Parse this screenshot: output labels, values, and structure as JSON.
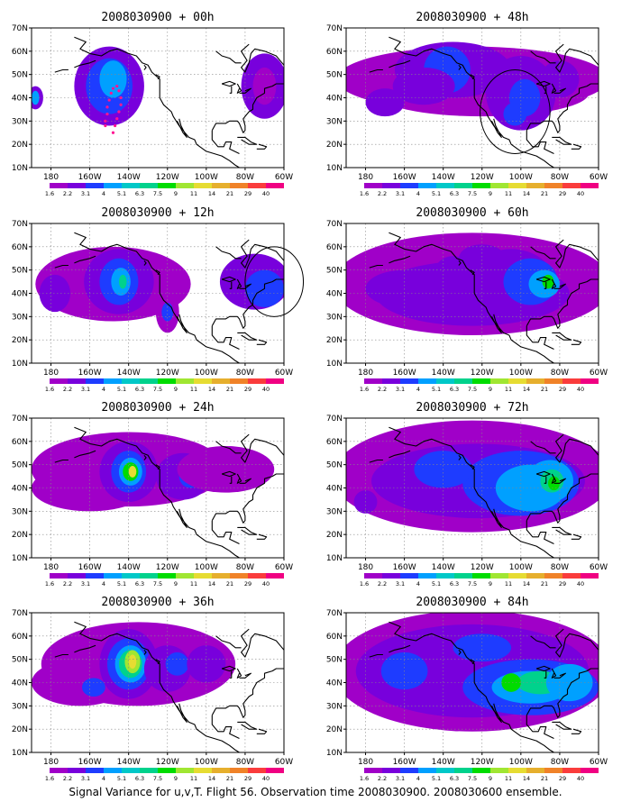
{
  "figure": {
    "caption": "Signal Variance for u,v,T. Flight 56. Observation time 2008030900. 2008030600 ensemble."
  },
  "map": {
    "lon_ticks": [
      "180",
      "160W",
      "140W",
      "120W",
      "100W",
      "80W",
      "60W"
    ],
    "lat_ticks": [
      "10N",
      "20N",
      "30N",
      "40N",
      "50N",
      "60N",
      "70N"
    ],
    "lon_range": [
      -190,
      -60
    ],
    "lat_range": [
      10,
      70
    ]
  },
  "colorbar": {
    "labels": [
      "1.6",
      "2.2",
      "3.1",
      "4",
      "5.1",
      "6.3",
      "7.5",
      "9",
      "11",
      "14",
      "21",
      "29",
      "40"
    ],
    "colors": [
      "#a000c8",
      "#7800dc",
      "#1e3cff",
      "#00a0ff",
      "#00c8c8",
      "#00d28c",
      "#00dc00",
      "#a0e632",
      "#e6dc32",
      "#e6af2d",
      "#f08228",
      "#fa3c3c",
      "#f00082"
    ]
  },
  "panels": [
    {
      "title": "2008030900 + 00h",
      "lead": "00h"
    },
    {
      "title": "2008030900 + 48h",
      "lead": "48h"
    },
    {
      "title": "2008030900 + 12h",
      "lead": "12h"
    },
    {
      "title": "2008030900 + 60h",
      "lead": "60h"
    },
    {
      "title": "2008030900 + 24h",
      "lead": "24h"
    },
    {
      "title": "2008030900 + 72h",
      "lead": "72h"
    },
    {
      "title": "2008030900 + 36h",
      "lead": "36h"
    },
    {
      "title": "2008030900 + 84h",
      "lead": "84h"
    }
  ]
}
